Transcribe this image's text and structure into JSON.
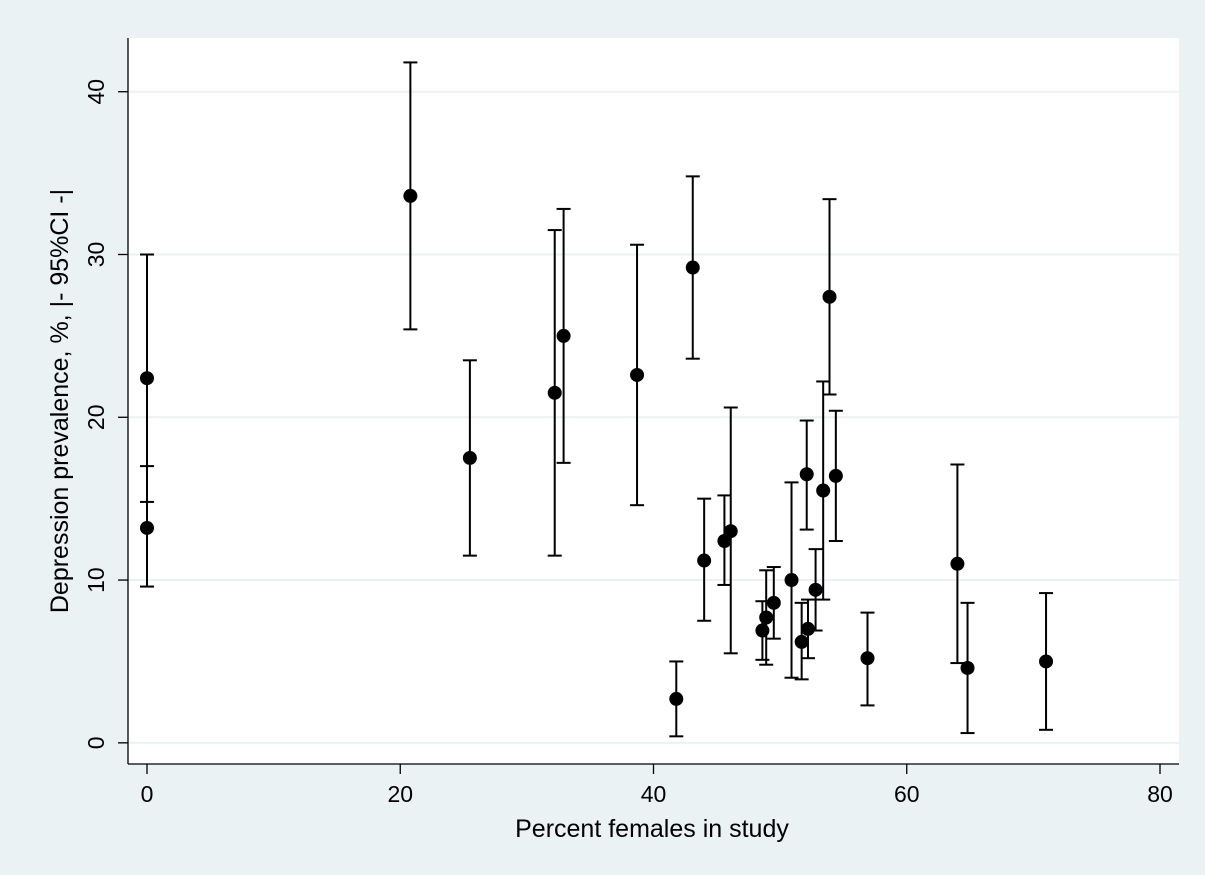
{
  "chart_data": {
    "type": "scatter",
    "title": "",
    "xlabel": "Percent females in study",
    "ylabel": "Depression prevalence, %, |- 95%CI -|",
    "xlim": [
      -1.5,
      81.5
    ],
    "ylim": [
      -1.3,
      43.3
    ],
    "xticks": [
      0,
      20,
      40,
      60,
      80
    ],
    "yticks": [
      0,
      10,
      20,
      30,
      40
    ],
    "grid": "horizontal",
    "legend": "none",
    "colors": {
      "background": "#eaf2f3",
      "plot_area": "#ffffff",
      "grid": "#eaf2f3",
      "marker": "#000000"
    },
    "points": [
      {
        "x": 0,
        "y": 22.4,
        "lo": 14.8,
        "hi": 30.0
      },
      {
        "x": 0,
        "y": 13.2,
        "lo": 9.6,
        "hi": 17.0
      },
      {
        "x": 20.8,
        "y": 33.6,
        "lo": 25.4,
        "hi": 41.8
      },
      {
        "x": 25.5,
        "y": 17.5,
        "lo": 11.5,
        "hi": 23.5
      },
      {
        "x": 32.2,
        "y": 21.5,
        "lo": 11.5,
        "hi": 31.5
      },
      {
        "x": 32.9,
        "y": 25.0,
        "lo": 17.2,
        "hi": 32.8
      },
      {
        "x": 38.7,
        "y": 22.6,
        "lo": 14.6,
        "hi": 30.6
      },
      {
        "x": 41.8,
        "y": 2.7,
        "lo": 0.4,
        "hi": 5.0
      },
      {
        "x": 43.1,
        "y": 29.2,
        "lo": 23.6,
        "hi": 34.8
      },
      {
        "x": 44.0,
        "y": 11.2,
        "lo": 7.5,
        "hi": 15.0
      },
      {
        "x": 45.6,
        "y": 12.4,
        "lo": 9.7,
        "hi": 15.2
      },
      {
        "x": 46.1,
        "y": 13.0,
        "lo": 5.5,
        "hi": 20.6
      },
      {
        "x": 48.6,
        "y": 6.9,
        "lo": 5.1,
        "hi": 8.7
      },
      {
        "x": 48.9,
        "y": 7.7,
        "lo": 4.8,
        "hi": 10.6
      },
      {
        "x": 49.5,
        "y": 8.6,
        "lo": 6.4,
        "hi": 10.8
      },
      {
        "x": 50.9,
        "y": 10.0,
        "lo": 4.0,
        "hi": 16.0
      },
      {
        "x": 51.7,
        "y": 6.2,
        "lo": 3.9,
        "hi": 8.6
      },
      {
        "x": 52.1,
        "y": 16.5,
        "lo": 13.1,
        "hi": 19.8
      },
      {
        "x": 52.2,
        "y": 7.0,
        "lo": 5.2,
        "hi": 8.8
      },
      {
        "x": 52.8,
        "y": 9.4,
        "lo": 6.9,
        "hi": 11.9
      },
      {
        "x": 53.4,
        "y": 15.5,
        "lo": 8.8,
        "hi": 22.2
      },
      {
        "x": 53.9,
        "y": 27.4,
        "lo": 21.4,
        "hi": 33.4
      },
      {
        "x": 54.4,
        "y": 16.4,
        "lo": 12.4,
        "hi": 20.4
      },
      {
        "x": 56.9,
        "y": 5.2,
        "lo": 2.3,
        "hi": 8.0
      },
      {
        "x": 64.0,
        "y": 11.0,
        "lo": 4.9,
        "hi": 17.1
      },
      {
        "x": 64.8,
        "y": 4.6,
        "lo": 0.6,
        "hi": 8.6
      },
      {
        "x": 71.0,
        "y": 5.0,
        "lo": 0.8,
        "hi": 9.2
      }
    ]
  }
}
